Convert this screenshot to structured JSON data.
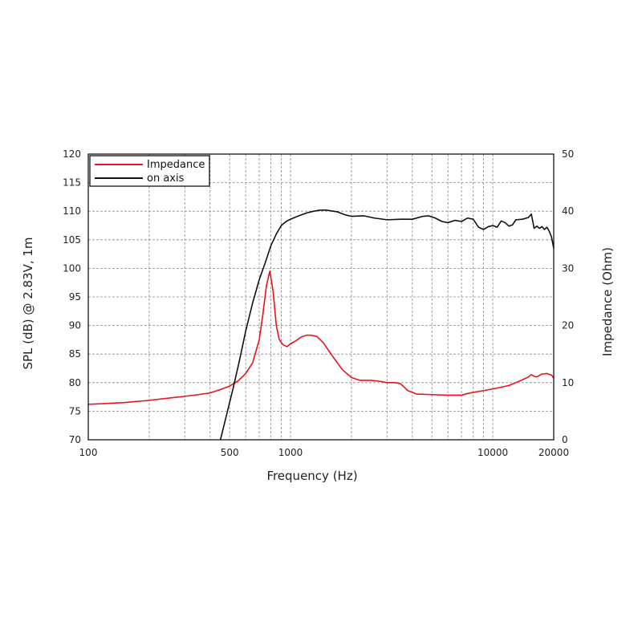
{
  "chart_data": {
    "type": "line",
    "xlabel": "Frequency (Hz)",
    "ylabel_left": "SPL (dB) @ 2.83V, 1m",
    "ylabel_right": "Impedance (Ohm)",
    "x_scale": "log",
    "xlim": [
      100,
      20000
    ],
    "ylim_left": [
      70,
      120
    ],
    "ylim_right": [
      0,
      50
    ],
    "grid": true,
    "legend_position": "top-left",
    "x_ticks": [
      {
        "value": 100,
        "label": "100"
      },
      {
        "value": 500,
        "label": "500"
      },
      {
        "value": 1000,
        "label": "1000"
      },
      {
        "value": 10000,
        "label": "10000"
      },
      {
        "value": 20000,
        "label": "20000"
      }
    ],
    "y_ticks_left": [
      70,
      75,
      80,
      85,
      90,
      95,
      100,
      105,
      110,
      115,
      120
    ],
    "y_ticks_right": [
      0,
      10,
      20,
      30,
      40,
      50
    ],
    "series": [
      {
        "name": "Impedance",
        "axis": "right",
        "color": "#e8141b",
        "points": [
          [
            100,
            6.2
          ],
          [
            150,
            6.5
          ],
          [
            200,
            6.9
          ],
          [
            250,
            7.3
          ],
          [
            300,
            7.6
          ],
          [
            350,
            7.9
          ],
          [
            400,
            8.2
          ],
          [
            450,
            8.8
          ],
          [
            500,
            9.4
          ],
          [
            550,
            10.3
          ],
          [
            600,
            11.6
          ],
          [
            650,
            13.5
          ],
          [
            700,
            17.5
          ],
          [
            730,
            22
          ],
          [
            760,
            27
          ],
          [
            790,
            29.5
          ],
          [
            820,
            26
          ],
          [
            850,
            20
          ],
          [
            880,
            17.5
          ],
          [
            920,
            16.6
          ],
          [
            960,
            16.3
          ],
          [
            1000,
            16.8
          ],
          [
            1060,
            17.3
          ],
          [
            1130,
            18.0
          ],
          [
            1200,
            18.3
          ],
          [
            1260,
            18.3
          ],
          [
            1350,
            18.1
          ],
          [
            1450,
            17.0
          ],
          [
            1600,
            14.8
          ],
          [
            1800,
            12.3
          ],
          [
            2000,
            10.9
          ],
          [
            2200,
            10.4
          ],
          [
            2500,
            10.4
          ],
          [
            2800,
            10.2
          ],
          [
            3000,
            10.0
          ],
          [
            3300,
            10.0
          ],
          [
            3500,
            9.8
          ],
          [
            3800,
            8.6
          ],
          [
            4200,
            8.0
          ],
          [
            5000,
            7.9
          ],
          [
            6000,
            7.8
          ],
          [
            7000,
            7.8
          ],
          [
            7500,
            8.1
          ],
          [
            8000,
            8.3
          ],
          [
            9000,
            8.6
          ],
          [
            10000,
            8.9
          ],
          [
            11000,
            9.2
          ],
          [
            12000,
            9.5
          ],
          [
            13000,
            10.0
          ],
          [
            14000,
            10.5
          ],
          [
            15000,
            11.0
          ],
          [
            15500,
            11.4
          ],
          [
            16000,
            11.1
          ],
          [
            16500,
            11.0
          ],
          [
            17500,
            11.5
          ],
          [
            18500,
            11.6
          ],
          [
            19500,
            11.3
          ],
          [
            20000,
            10.8
          ]
        ]
      },
      {
        "name": "on axis",
        "axis": "left",
        "color": "#111111",
        "points": [
          [
            450,
            70
          ],
          [
            480,
            74
          ],
          [
            520,
            79
          ],
          [
            560,
            84
          ],
          [
            600,
            89
          ],
          [
            650,
            94
          ],
          [
            700,
            98
          ],
          [
            750,
            101
          ],
          [
            800,
            104
          ],
          [
            850,
            106
          ],
          [
            900,
            107.5
          ],
          [
            950,
            108.2
          ],
          [
            1000,
            108.6
          ],
          [
            1100,
            109.2
          ],
          [
            1200,
            109.7
          ],
          [
            1300,
            110.0
          ],
          [
            1400,
            110.2
          ],
          [
            1500,
            110.2
          ],
          [
            1700,
            109.9
          ],
          [
            1850,
            109.4
          ],
          [
            2000,
            109.1
          ],
          [
            2300,
            109.2
          ],
          [
            2600,
            108.8
          ],
          [
            3000,
            108.5
          ],
          [
            3500,
            108.6
          ],
          [
            4000,
            108.6
          ],
          [
            4500,
            109.1
          ],
          [
            4800,
            109.2
          ],
          [
            5200,
            108.8
          ],
          [
            5600,
            108.2
          ],
          [
            6000,
            108.0
          ],
          [
            6500,
            108.4
          ],
          [
            7000,
            108.2
          ],
          [
            7500,
            108.8
          ],
          [
            8000,
            108.6
          ],
          [
            8500,
            107.2
          ],
          [
            9000,
            106.8
          ],
          [
            9500,
            107.3
          ],
          [
            10000,
            107.5
          ],
          [
            10500,
            107.2
          ],
          [
            11000,
            108.3
          ],
          [
            11500,
            108.0
          ],
          [
            12000,
            107.4
          ],
          [
            12500,
            107.6
          ],
          [
            13000,
            108.5
          ],
          [
            14000,
            108.6
          ],
          [
            15000,
            108.9
          ],
          [
            15500,
            109.5
          ],
          [
            16000,
            107.0
          ],
          [
            16500,
            107.4
          ],
          [
            17000,
            107.0
          ],
          [
            17500,
            107.3
          ],
          [
            18000,
            106.8
          ],
          [
            18500,
            107.2
          ],
          [
            19000,
            106.5
          ],
          [
            19500,
            105.5
          ],
          [
            20000,
            103.5
          ]
        ]
      }
    ]
  }
}
